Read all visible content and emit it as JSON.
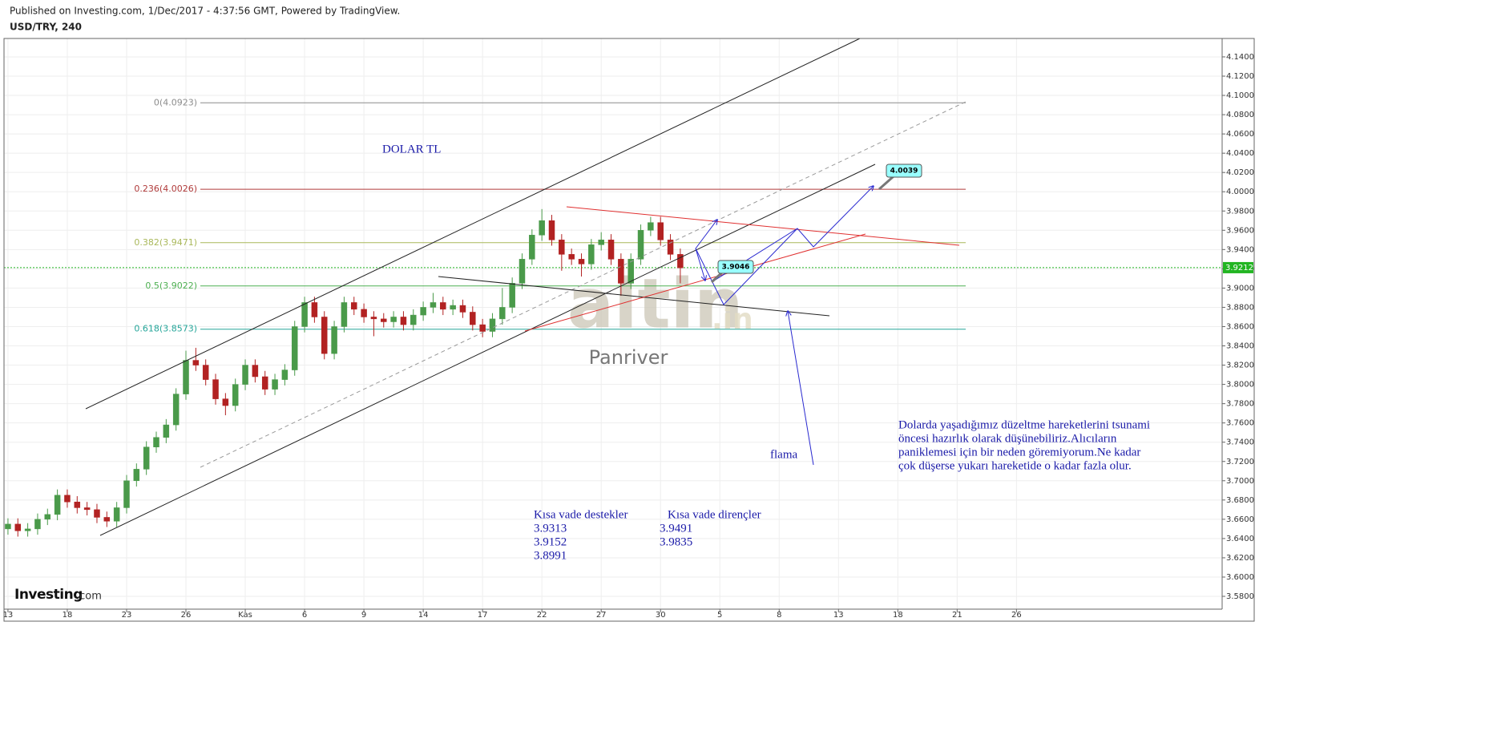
{
  "header": {
    "published": "Published on Investing.com, 1/Dec/2017 - 4:37:56 GMT, Powered by TradingView.",
    "symbol": "USD/TRY, 240"
  },
  "chart_data": {
    "type": "candlestick",
    "up_color": "#4a9a4a",
    "down_color": "#b22222",
    "xlim": [
      -0.2,
      61.4
    ],
    "ylim": [
      3.5667,
      4.1591
    ],
    "grid": true,
    "xticks": [
      {
        "value": 0,
        "label": "13"
      },
      {
        "value": 3,
        "label": "18"
      },
      {
        "value": 6,
        "label": "23"
      },
      {
        "value": 9,
        "label": "26"
      },
      {
        "value": 12,
        "label": "Kas"
      },
      {
        "value": 15,
        "label": "6"
      },
      {
        "value": 18,
        "label": "9"
      },
      {
        "value": 21,
        "label": "14"
      },
      {
        "value": 24,
        "label": "17"
      },
      {
        "value": 27,
        "label": "22"
      },
      {
        "value": 30,
        "label": "27"
      },
      {
        "value": 33,
        "label": "30"
      },
      {
        "value": 36,
        "label": "5"
      },
      {
        "value": 39,
        "label": "8"
      },
      {
        "value": 42,
        "label": "13"
      },
      {
        "value": 45,
        "label": "18"
      },
      {
        "value": 48,
        "label": "21"
      },
      {
        "value": 51,
        "label": "26"
      }
    ],
    "yticks": [
      {
        "value": 4.14,
        "label": "4.1400"
      },
      {
        "value": 4.12,
        "label": "4.1200"
      },
      {
        "value": 4.1,
        "label": "4.1000"
      },
      {
        "value": 4.08,
        "label": "4.0800"
      },
      {
        "value": 4.06,
        "label": "4.0600"
      },
      {
        "value": 4.04,
        "label": "4.0400"
      },
      {
        "value": 4.02,
        "label": "4.0200"
      },
      {
        "value": 4.0,
        "label": "4.0000"
      },
      {
        "value": 3.98,
        "label": "3.9800"
      },
      {
        "value": 3.96,
        "label": "3.9600"
      },
      {
        "value": 3.94,
        "label": "3.9400"
      },
      {
        "value": 3.92,
        "label": "3.9200"
      },
      {
        "value": 3.9,
        "label": "3.9000"
      },
      {
        "value": 3.88,
        "label": "3.8800"
      },
      {
        "value": 3.86,
        "label": "3.8600"
      },
      {
        "value": 3.84,
        "label": "3.8400"
      },
      {
        "value": 3.82,
        "label": "3.8200"
      },
      {
        "value": 3.8,
        "label": "3.8000"
      },
      {
        "value": 3.78,
        "label": "3.7800"
      },
      {
        "value": 3.76,
        "label": "3.7600"
      },
      {
        "value": 3.74,
        "label": "3.7400"
      },
      {
        "value": 3.72,
        "label": "3.7200"
      },
      {
        "value": 3.7,
        "label": "3.7000"
      },
      {
        "value": 3.68,
        "label": "3.6800"
      },
      {
        "value": 3.66,
        "label": "3.6600"
      },
      {
        "value": 3.64,
        "label": "3.6400"
      },
      {
        "value": 3.62,
        "label": "3.6200"
      },
      {
        "value": 3.6,
        "label": "3.6000"
      },
      {
        "value": 3.58,
        "label": "3.5800"
      }
    ],
    "x": [
      0,
      0.5,
      1,
      1.5,
      2,
      2.5,
      3,
      3.5,
      4,
      4.5,
      5,
      5.5,
      6,
      6.5,
      7,
      7.5,
      8,
      8.5,
      9,
      9.5,
      10,
      10.5,
      11,
      11.5,
      12,
      12.5,
      13,
      13.5,
      14,
      14.5,
      15,
      15.5,
      16,
      16.5,
      17,
      17.5,
      18,
      18.5,
      19,
      19.5,
      20,
      20.5,
      21,
      21.5,
      22,
      22.5,
      23,
      23.5,
      24,
      24.5,
      25,
      25.5,
      26,
      26.5,
      27,
      27.5,
      28,
      28.5,
      29,
      29.5,
      30,
      30.5,
      31,
      31.5,
      32,
      32.5,
      33,
      33.5,
      34
    ],
    "ohlc": [
      [
        3.65,
        3.661,
        3.644,
        3.655
      ],
      [
        3.655,
        3.661,
        3.642,
        3.648
      ],
      [
        3.648,
        3.656,
        3.642,
        3.65
      ],
      [
        3.65,
        3.666,
        3.644,
        3.66
      ],
      [
        3.66,
        3.671,
        3.654,
        3.665
      ],
      [
        3.665,
        3.691,
        3.659,
        3.685
      ],
      [
        3.685,
        3.691,
        3.672,
        3.678
      ],
      [
        3.678,
        3.684,
        3.666,
        3.672
      ],
      [
        3.672,
        3.678,
        3.664,
        3.67
      ],
      [
        3.67,
        3.676,
        3.656,
        3.662
      ],
      [
        3.662,
        3.668,
        3.652,
        3.658
      ],
      [
        3.658,
        3.678,
        3.652,
        3.672
      ],
      [
        3.672,
        3.706,
        3.666,
        3.7
      ],
      [
        3.7,
        3.718,
        3.694,
        3.712
      ],
      [
        3.712,
        3.741,
        3.706,
        3.735
      ],
      [
        3.735,
        3.751,
        3.729,
        3.745
      ],
      [
        3.745,
        3.764,
        3.739,
        3.758
      ],
      [
        3.758,
        3.796,
        3.752,
        3.79
      ],
      [
        3.79,
        3.835,
        3.784,
        3.825
      ],
      [
        3.825,
        3.838,
        3.814,
        3.82
      ],
      [
        3.82,
        3.826,
        3.799,
        3.805
      ],
      [
        3.805,
        3.811,
        3.779,
        3.785
      ],
      [
        3.785,
        3.791,
        3.768,
        3.778
      ],
      [
        3.778,
        3.806,
        3.772,
        3.8
      ],
      [
        3.8,
        3.826,
        3.794,
        3.82
      ],
      [
        3.82,
        3.826,
        3.802,
        3.808
      ],
      [
        3.808,
        3.814,
        3.789,
        3.795
      ],
      [
        3.795,
        3.811,
        3.789,
        3.805
      ],
      [
        3.805,
        3.821,
        3.799,
        3.815
      ],
      [
        3.815,
        3.866,
        3.809,
        3.86
      ],
      [
        3.86,
        3.891,
        3.854,
        3.885
      ],
      [
        3.885,
        3.891,
        3.864,
        3.87
      ],
      [
        3.87,
        3.876,
        3.826,
        3.832
      ],
      [
        3.832,
        3.866,
        3.826,
        3.86
      ],
      [
        3.86,
        3.891,
        3.854,
        3.885
      ],
      [
        3.885,
        3.891,
        3.872,
        3.878
      ],
      [
        3.878,
        3.884,
        3.864,
        3.87
      ],
      [
        3.87,
        3.876,
        3.85,
        3.868
      ],
      [
        3.868,
        3.874,
        3.859,
        3.865
      ],
      [
        3.865,
        3.876,
        3.859,
        3.87
      ],
      [
        3.87,
        3.876,
        3.856,
        3.862
      ],
      [
        3.862,
        3.878,
        3.856,
        3.872
      ],
      [
        3.872,
        3.886,
        3.866,
        3.88
      ],
      [
        3.88,
        3.895,
        3.874,
        3.885
      ],
      [
        3.885,
        3.891,
        3.872,
        3.878
      ],
      [
        3.878,
        3.888,
        3.872,
        3.882
      ],
      [
        3.882,
        3.888,
        3.869,
        3.875
      ],
      [
        3.875,
        3.881,
        3.856,
        3.862
      ],
      [
        3.862,
        3.868,
        3.849,
        3.855
      ],
      [
        3.855,
        3.874,
        3.849,
        3.868
      ],
      [
        3.868,
        3.9,
        3.862,
        3.88
      ],
      [
        3.88,
        3.911,
        3.874,
        3.905
      ],
      [
        3.905,
        3.936,
        3.899,
        3.93
      ],
      [
        3.93,
        3.961,
        3.924,
        3.955
      ],
      [
        3.955,
        3.982,
        3.949,
        3.97
      ],
      [
        3.97,
        3.976,
        3.944,
        3.95
      ],
      [
        3.95,
        3.956,
        3.918,
        3.935
      ],
      [
        3.935,
        3.941,
        3.924,
        3.93
      ],
      [
        3.93,
        3.936,
        3.912,
        3.925
      ],
      [
        3.925,
        3.951,
        3.919,
        3.945
      ],
      [
        3.945,
        3.958,
        3.939,
        3.95
      ],
      [
        3.95,
        3.956,
        3.924,
        3.93
      ],
      [
        3.93,
        3.936,
        3.892,
        3.905
      ],
      [
        3.905,
        3.936,
        3.899,
        3.93
      ],
      [
        3.93,
        3.966,
        3.924,
        3.96
      ],
      [
        3.96,
        3.974,
        3.954,
        3.968
      ],
      [
        3.968,
        3.974,
        3.944,
        3.95
      ],
      [
        3.95,
        3.956,
        3.929,
        3.935
      ],
      [
        3.935,
        3.941,
        3.905,
        3.921
      ]
    ],
    "fib_levels": [
      {
        "label": "0(4.0923)",
        "value": 4.0923,
        "color": "#8c8c8c"
      },
      {
        "label": "0.236(4.0026)",
        "value": 4.0026,
        "color": "#b03a3a"
      },
      {
        "label": "0.382(3.9471)",
        "value": 3.9471,
        "color": "#a9b85a"
      },
      {
        "label": "0.5(3.9022)",
        "value": 3.9022,
        "color": "#4caf50"
      },
      {
        "label": "0.618(3.8573)",
        "value": 3.8573,
        "color": "#26a69a"
      }
    ],
    "last_price": {
      "value": 3.9212,
      "label": "3.9212",
      "color": "#22b522"
    },
    "annotations": {
      "title": "DOLAR TL",
      "target": "4.0039",
      "support_mark": "3.9046",
      "pennant": "flama",
      "watermark": "altin",
      "watermark_suffix": ".in",
      "author": "Panriver",
      "comment": [
        "Dolarda yaşadığımız düzeltme hareketlerini tsunami",
        "öncesi hazırlık olarak düşünebiliriz.Alıcıların",
        "paniklemesi için bir neden göremiyorum.Ne kadar",
        "çok düşerse yukarı hareketide o kadar fazla olur."
      ],
      "supports_title": "Kısa vade destekler",
      "supports": [
        "3.9313",
        "3.9152",
        "3.8991"
      ],
      "resistances_title": "Kısa vade dirençler",
      "resistances": [
        "3.9491",
        "3.9835"
      ]
    },
    "logo": {
      "brand": "Investing",
      "suffix": ".com"
    }
  }
}
